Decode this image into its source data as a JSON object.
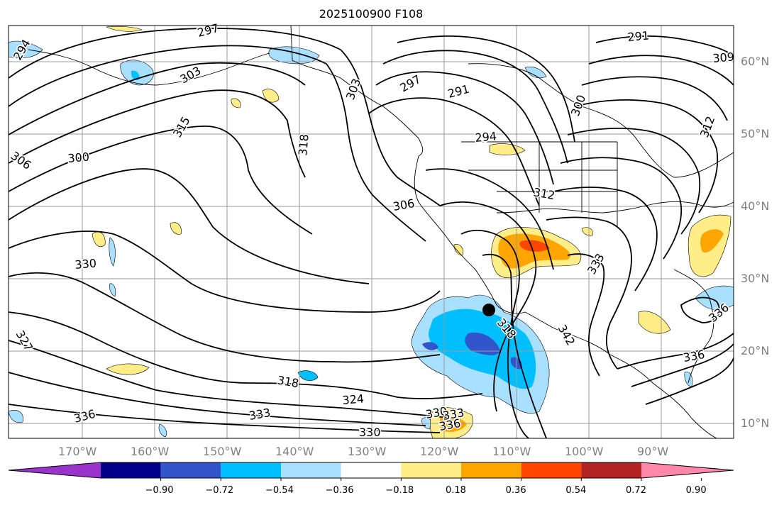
{
  "title": "2025100900 F108",
  "lon_labels": [
    "170°W",
    "160°W",
    "150°W",
    "140°W",
    "130°W",
    "120°W",
    "110°W",
    "100°W",
    "90°W"
  ],
  "lat_labels": [
    "60°N",
    "50°N",
    "40°N",
    "30°N",
    "20°N",
    "10°N"
  ],
  "contour_labels": [
    "297",
    "294",
    "303",
    "291",
    "303",
    "297",
    "291",
    "300",
    "309",
    "312",
    "315",
    "318",
    "306",
    "300",
    "294",
    "312",
    "306",
    "330",
    "333",
    "318",
    "342",
    "327",
    "336",
    "318",
    "324",
    "333",
    "330",
    "333",
    "336",
    "330",
    "336",
    "336"
  ],
  "colorbar": {
    "ticks": [
      "−0.90",
      "−0.72",
      "−0.54",
      "−0.36",
      "−0.18",
      "0.18",
      "0.36",
      "0.54",
      "0.72",
      "0.90"
    ],
    "colors": [
      "#9933cc",
      "#00008b",
      "#3355cc",
      "#00bfff",
      "#aae0ff",
      "#ffffff",
      "#ffee88",
      "#ffa500",
      "#ff4500",
      "#b22222",
      "#ff88aa"
    ]
  },
  "marker": "storm-center"
}
